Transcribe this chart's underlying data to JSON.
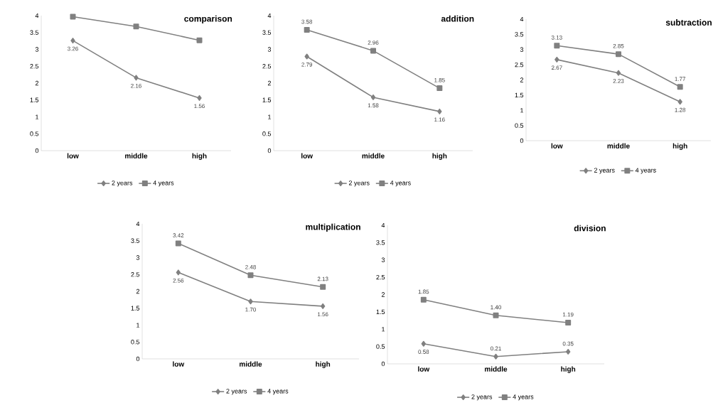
{
  "chart_data": [
    {
      "type": "line",
      "title": "comparison",
      "categories": [
        "low",
        "middle",
        "high"
      ],
      "ylim": [
        0,
        4
      ],
      "yticks": [
        0,
        0.5,
        1,
        1.5,
        2,
        2.5,
        3,
        3.5,
        4
      ],
      "grid": false,
      "legend": "bottom",
      "series": [
        {
          "name": "2 years",
          "color": "#808080",
          "marker": "diamond",
          "values": [
            3.26,
            2.16,
            1.56
          ],
          "value_labels": [
            "3.26",
            "2.16",
            "1.56"
          ]
        },
        {
          "name": "4 years",
          "color": "#808080",
          "marker": "square",
          "values": [
            3.97,
            3.68,
            3.27
          ]
        }
      ]
    },
    {
      "type": "line",
      "title": "addition",
      "categories": [
        "low",
        "middle",
        "high"
      ],
      "ylim": [
        0,
        4
      ],
      "yticks": [
        0,
        0.5,
        1,
        1.5,
        2,
        2.5,
        3,
        3.5,
        4
      ],
      "grid": false,
      "legend": "bottom",
      "series": [
        {
          "name": "2 years",
          "color": "#808080",
          "marker": "diamond",
          "values": [
            2.79,
            1.58,
            1.16
          ],
          "value_labels": [
            "2.79",
            "1.58",
            "1.16"
          ]
        },
        {
          "name": "4 years",
          "color": "#808080",
          "marker": "square",
          "values": [
            3.58,
            2.96,
            1.85
          ],
          "value_labels": [
            "3.58",
            "2.96",
            "1.85"
          ]
        }
      ]
    },
    {
      "type": "line",
      "title": "subtraction",
      "categories": [
        "low",
        "middle",
        "high"
      ],
      "ylim": [
        0,
        4
      ],
      "yticks": [
        0,
        0.5,
        1,
        1.5,
        2,
        2.5,
        3,
        3.5,
        4
      ],
      "grid": false,
      "legend": "bottom",
      "series": [
        {
          "name": "2 years",
          "color": "#808080",
          "marker": "diamond",
          "values": [
            2.67,
            2.23,
            1.28
          ],
          "value_labels": [
            "2.67",
            "2.23",
            "1.28"
          ]
        },
        {
          "name": "4 years",
          "color": "#808080",
          "marker": "square",
          "values": [
            3.13,
            2.85,
            1.77
          ],
          "value_labels": [
            "3.13",
            "2.85",
            "1.77"
          ]
        }
      ]
    },
    {
      "type": "line",
      "title": "multiplication",
      "categories": [
        "low",
        "middle",
        "high"
      ],
      "ylim": [
        0,
        4
      ],
      "yticks": [
        0,
        0.5,
        1,
        1.5,
        2,
        2.5,
        3,
        3.5,
        4
      ],
      "grid": false,
      "legend": "bottom",
      "series": [
        {
          "name": "2 years",
          "color": "#808080",
          "marker": "diamond",
          "values": [
            2.56,
            1.7,
            1.56
          ],
          "value_labels": [
            "2.56",
            "1.70",
            "1.56"
          ]
        },
        {
          "name": "4 years",
          "color": "#808080",
          "marker": "square",
          "values": [
            3.42,
            2.48,
            2.13
          ],
          "value_labels": [
            "3.42",
            "2.48",
            "2.13"
          ]
        }
      ]
    },
    {
      "type": "line",
      "title": "division",
      "categories": [
        "low",
        "middle",
        "high"
      ],
      "ylim": [
        0,
        4
      ],
      "yticks": [
        0,
        0.5,
        1,
        1.5,
        2,
        2.5,
        3,
        3.5,
        4
      ],
      "grid": false,
      "legend": "bottom",
      "series": [
        {
          "name": "2 years",
          "color": "#808080",
          "marker": "diamond",
          "values": [
            0.58,
            0.21,
            0.35
          ],
          "value_labels": [
            "0.58",
            "0.21",
            "0.35"
          ]
        },
        {
          "name": "4 years",
          "color": "#808080",
          "marker": "square",
          "values": [
            1.85,
            1.4,
            1.19
          ],
          "value_labels": [
            "1.85",
            "1.40",
            "1.19"
          ]
        }
      ]
    }
  ]
}
